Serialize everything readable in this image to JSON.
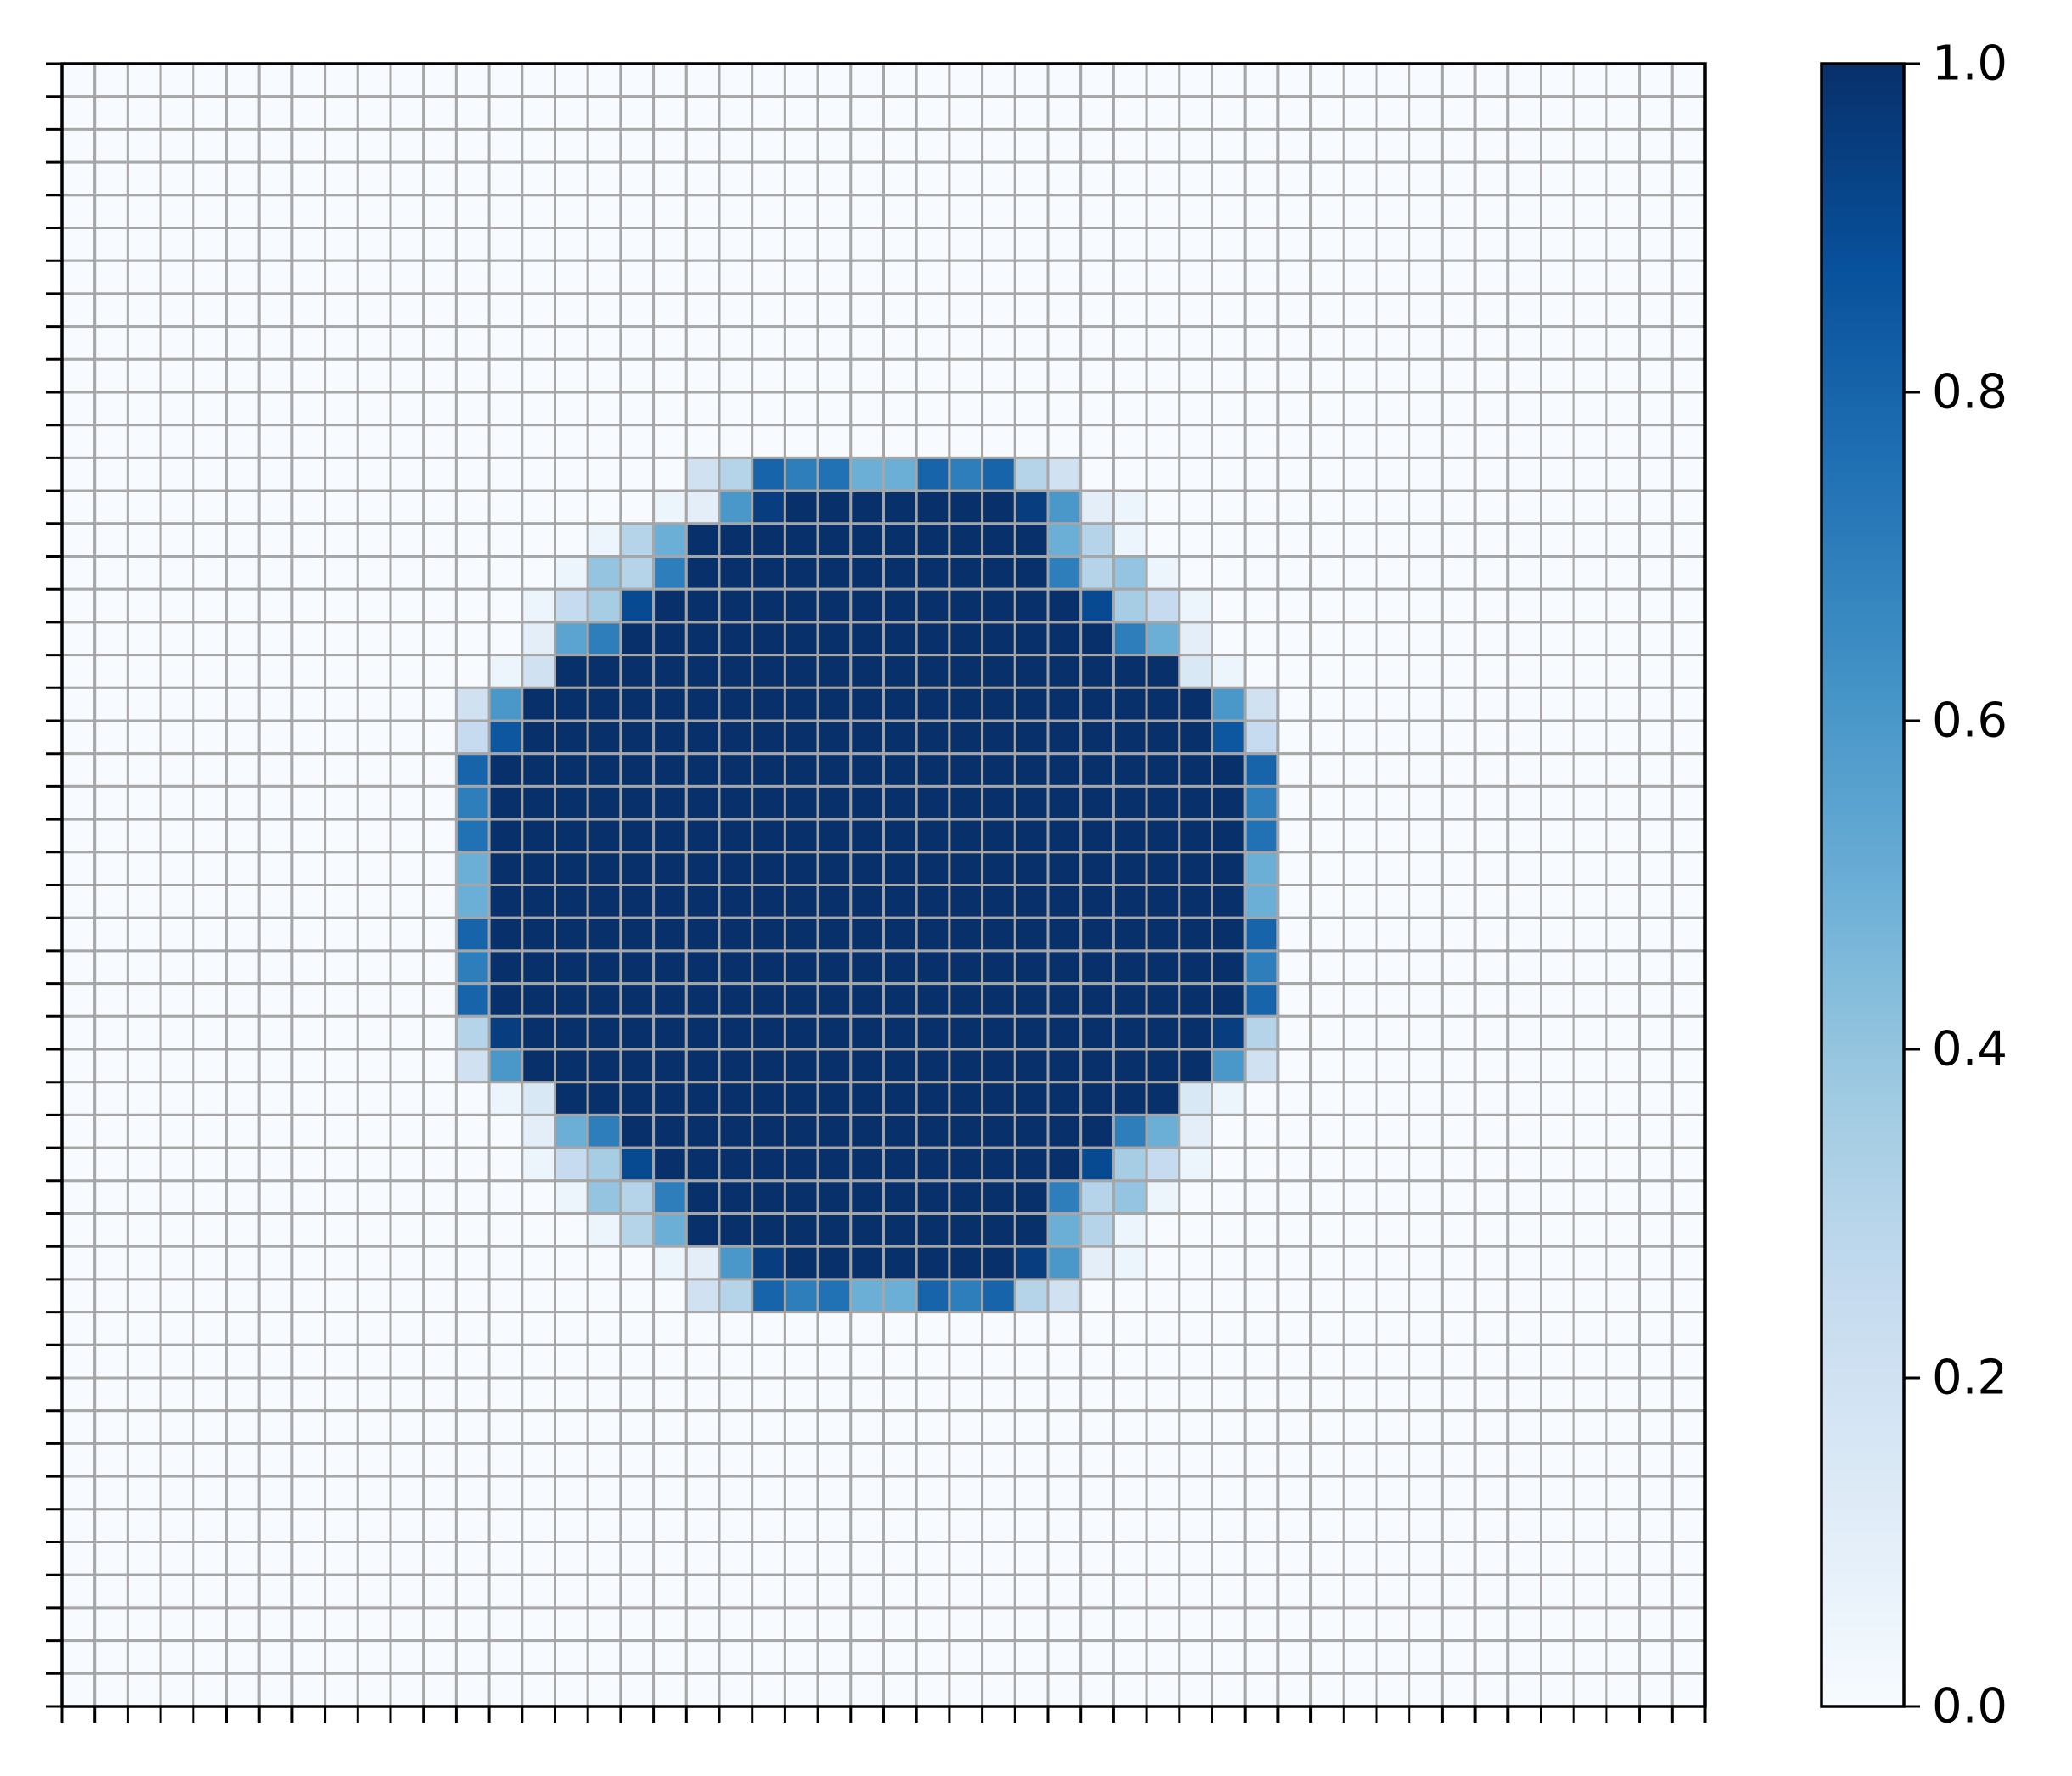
{
  "chart_data": {
    "type": "heatmap",
    "title": "",
    "xlabel": "",
    "ylabel": "",
    "grid": true,
    "colormap": "Blues",
    "colormap_stops": [
      "#f7fbff",
      "#deebf7",
      "#c6dbef",
      "#9ecae1",
      "#6baed6",
      "#4292c6",
      "#2171b5",
      "#08519c",
      "#08306b"
    ],
    "grid_color": "#a6a6a6",
    "rows": 50,
    "cols": 50,
    "value_range": [
      0,
      1
    ],
    "x_tick_labels_visible": false,
    "y_tick_labels_visible": false,
    "default_value": 0,
    "disk_rows": [
      {
        "row": 12,
        "col_start": 19,
        "values": [
          0.2,
          0.3,
          0.8,
          0.7,
          0.75,
          0.5,
          0.5,
          0.8,
          0.7,
          0.8,
          0.3,
          0.2
        ]
      },
      {
        "row": 13,
        "col_start": 18,
        "values": [
          0.05,
          0.1,
          0.6,
          0.95,
          1,
          1,
          1,
          1,
          1,
          1,
          1,
          0.95,
          0.6,
          0.1,
          0.05
        ]
      },
      {
        "row": 14,
        "col_start": 16,
        "values": [
          0.05,
          0.3,
          0.5,
          1,
          1,
          1,
          1,
          1,
          1,
          1,
          1,
          1,
          1,
          1,
          0.5,
          0.3,
          0.05
        ]
      },
      {
        "row": 15,
        "col_start": 15,
        "values": [
          0.05,
          0.4,
          0.3,
          0.7,
          1,
          1,
          1,
          1,
          1,
          1,
          1,
          1,
          1,
          1,
          1,
          0.7,
          0.3,
          0.4,
          0.05
        ]
      },
      {
        "row": 16,
        "col_start": 14,
        "values": [
          0.05,
          0.25,
          0.35,
          0.9,
          1,
          1,
          1,
          1,
          1,
          1,
          1,
          1,
          1,
          1,
          1,
          1,
          1,
          0.9,
          0.35,
          0.25,
          0.05
        ]
      },
      {
        "row": 17,
        "col_start": 14,
        "values": [
          0.1,
          0.55,
          0.7,
          1,
          1,
          1,
          1,
          1,
          1,
          1,
          1,
          1,
          1,
          1,
          1,
          1,
          1,
          1,
          0.7,
          0.5,
          0.1
        ]
      },
      {
        "row": 18,
        "col_start": 13,
        "values": [
          0.05,
          0.2,
          1,
          1,
          1,
          1,
          1,
          1,
          1,
          1,
          1,
          1,
          1,
          1,
          1,
          1,
          1,
          1,
          1,
          1,
          1,
          0.15,
          0.05
        ]
      },
      {
        "row": 19,
        "col_start": 12,
        "values": [
          0.2,
          0.6,
          1,
          1,
          1,
          1,
          1,
          1,
          1,
          1,
          1,
          1,
          1,
          1,
          1,
          1,
          1,
          1,
          1,
          1,
          1,
          1,
          1,
          0.6,
          0.2
        ]
      },
      {
        "row": 20,
        "col_start": 12,
        "values": [
          0.25,
          0.85,
          1,
          1,
          1,
          1,
          1,
          1,
          1,
          1,
          1,
          1,
          1,
          1,
          1,
          1,
          1,
          1,
          1,
          1,
          1,
          1,
          1,
          0.85,
          0.25
        ]
      },
      {
        "row": 21,
        "col_start": 12,
        "values": [
          0.8,
          1,
          1,
          1,
          1,
          1,
          1,
          1,
          1,
          1,
          1,
          1,
          1,
          1,
          1,
          1,
          1,
          1,
          1,
          1,
          1,
          1,
          1,
          1,
          0.8
        ]
      },
      {
        "row": 22,
        "col_start": 12,
        "values": [
          0.7,
          1,
          1,
          1,
          1,
          1,
          1,
          1,
          1,
          1,
          1,
          1,
          1,
          1,
          1,
          1,
          1,
          1,
          1,
          1,
          1,
          1,
          1,
          1,
          0.7
        ]
      },
      {
        "row": 23,
        "col_start": 12,
        "values": [
          0.75,
          1,
          1,
          1,
          1,
          1,
          1,
          1,
          1,
          1,
          1,
          1,
          1,
          1,
          1,
          1,
          1,
          1,
          1,
          1,
          1,
          1,
          1,
          1,
          0.75
        ]
      },
      {
        "row": 24,
        "col_start": 12,
        "values": [
          0.5,
          1,
          1,
          1,
          1,
          1,
          1,
          1,
          1,
          1,
          1,
          1,
          1,
          1,
          1,
          1,
          1,
          1,
          1,
          1,
          1,
          1,
          1,
          1,
          0.5
        ]
      },
      {
        "row": 25,
        "col_start": 12,
        "values": [
          0.5,
          1,
          1,
          1,
          1,
          1,
          1,
          1,
          1,
          1,
          1,
          1,
          1,
          1,
          1,
          1,
          1,
          1,
          1,
          1,
          1,
          1,
          1,
          1,
          0.5
        ]
      },
      {
        "row": 26,
        "col_start": 12,
        "values": [
          0.8,
          1,
          1,
          1,
          1,
          1,
          1,
          1,
          1,
          1,
          1,
          1,
          1,
          1,
          1,
          1,
          1,
          1,
          1,
          1,
          1,
          1,
          1,
          1,
          0.8
        ]
      },
      {
        "row": 27,
        "col_start": 12,
        "values": [
          0.7,
          1,
          1,
          1,
          1,
          1,
          1,
          1,
          1,
          1,
          1,
          1,
          1,
          1,
          1,
          1,
          1,
          1,
          1,
          1,
          1,
          1,
          1,
          1,
          0.7
        ]
      },
      {
        "row": 28,
        "col_start": 12,
        "values": [
          0.8,
          1,
          1,
          1,
          1,
          1,
          1,
          1,
          1,
          1,
          1,
          1,
          1,
          1,
          1,
          1,
          1,
          1,
          1,
          1,
          1,
          1,
          1,
          1,
          0.8
        ]
      },
      {
        "row": 29,
        "col_start": 12,
        "values": [
          0.3,
          0.95,
          1,
          1,
          1,
          1,
          1,
          1,
          1,
          1,
          1,
          1,
          1,
          1,
          1,
          1,
          1,
          1,
          1,
          1,
          1,
          1,
          1,
          0.95,
          0.3
        ]
      },
      {
        "row": 30,
        "col_start": 12,
        "values": [
          0.2,
          0.6,
          1,
          1,
          1,
          1,
          1,
          1,
          1,
          1,
          1,
          1,
          1,
          1,
          1,
          1,
          1,
          1,
          1,
          1,
          1,
          1,
          1,
          0.6,
          0.2
        ]
      },
      {
        "row": 31,
        "col_start": 13,
        "values": [
          0.05,
          0.15,
          1,
          1,
          1,
          1,
          1,
          1,
          1,
          1,
          1,
          1,
          1,
          1,
          1,
          1,
          1,
          1,
          1,
          1,
          1,
          0.15,
          0.05
        ]
      },
      {
        "row": 32,
        "col_start": 14,
        "values": [
          0.1,
          0.5,
          0.7,
          1,
          1,
          1,
          1,
          1,
          1,
          1,
          1,
          1,
          1,
          1,
          1,
          1,
          1,
          1,
          0.7,
          0.5,
          0.1
        ]
      },
      {
        "row": 33,
        "col_start": 14,
        "values": [
          0.05,
          0.25,
          0.35,
          0.9,
          1,
          1,
          1,
          1,
          1,
          1,
          1,
          1,
          1,
          1,
          1,
          1,
          1,
          0.9,
          0.35,
          0.25,
          0.05
        ]
      },
      {
        "row": 34,
        "col_start": 15,
        "values": [
          0.05,
          0.4,
          0.3,
          0.7,
          1,
          1,
          1,
          1,
          1,
          1,
          1,
          1,
          1,
          1,
          1,
          0.7,
          0.3,
          0.4,
          0.05
        ]
      },
      {
        "row": 35,
        "col_start": 16,
        "values": [
          0.05,
          0.3,
          0.5,
          1,
          1,
          1,
          1,
          1,
          1,
          1,
          1,
          1,
          1,
          1,
          0.5,
          0.3,
          0.05
        ]
      },
      {
        "row": 36,
        "col_start": 18,
        "values": [
          0.05,
          0.1,
          0.6,
          0.95,
          1,
          1,
          1,
          1,
          1,
          1,
          1,
          0.95,
          0.6,
          0.1,
          0.05
        ]
      },
      {
        "row": 37,
        "col_start": 19,
        "values": [
          0.2,
          0.3,
          0.8,
          0.7,
          0.75,
          0.5,
          0.5,
          0.8,
          0.7,
          0.8,
          0.3,
          0.2
        ]
      }
    ],
    "colorbar": {
      "ticks": [
        0.0,
        0.2,
        0.4,
        0.6,
        0.8,
        1.0
      ],
      "tick_labels": [
        "0.0",
        "0.2",
        "0.4",
        "0.6",
        "0.8",
        "1.0"
      ],
      "placement": "right"
    }
  }
}
